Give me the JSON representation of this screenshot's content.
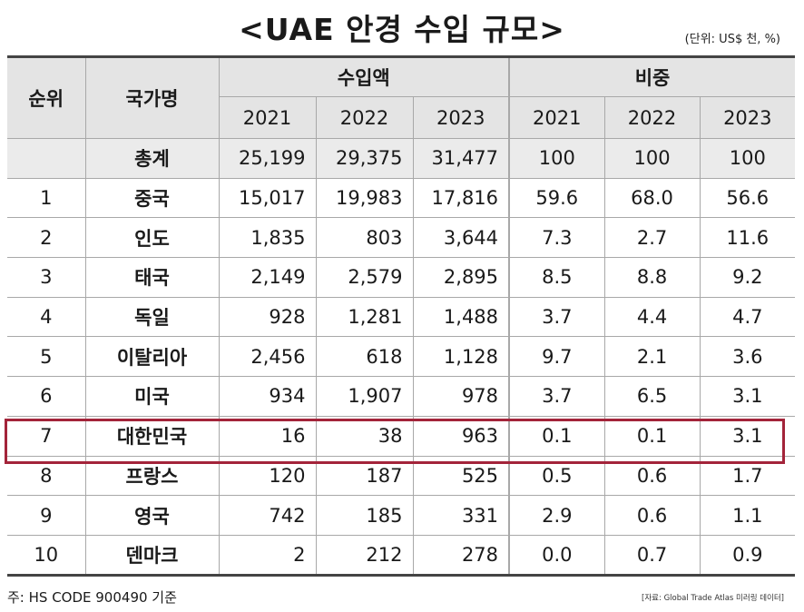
{
  "title": "<UAE 안경 수입 규모>",
  "unit": "(단위: US$ 천, %)",
  "headers": {
    "rank": "순위",
    "country": "국가명",
    "import_value": "수입액",
    "share": "비중",
    "years": [
      "2021",
      "2022",
      "2023"
    ]
  },
  "rows": [
    {
      "rank": "",
      "country": "총계",
      "import": [
        "25,199",
        "29,375",
        "31,477"
      ],
      "share": [
        "100",
        "100",
        "100"
      ]
    },
    {
      "rank": "1",
      "country": "중국",
      "import": [
        "15,017",
        "19,983",
        "17,816"
      ],
      "share": [
        "59.6",
        "68.0",
        "56.6"
      ]
    },
    {
      "rank": "2",
      "country": "인도",
      "import": [
        "1,835",
        "803",
        "3,644"
      ],
      "share": [
        "7.3",
        "2.7",
        "11.6"
      ]
    },
    {
      "rank": "3",
      "country": "태국",
      "import": [
        "2,149",
        "2,579",
        "2,895"
      ],
      "share": [
        "8.5",
        "8.8",
        "9.2"
      ]
    },
    {
      "rank": "4",
      "country": "독일",
      "import": [
        "928",
        "1,281",
        "1,488"
      ],
      "share": [
        "3.7",
        "4.4",
        "4.7"
      ]
    },
    {
      "rank": "5",
      "country": "이탈리아",
      "import": [
        "2,456",
        "618",
        "1,128"
      ],
      "share": [
        "9.7",
        "2.1",
        "3.6"
      ]
    },
    {
      "rank": "6",
      "country": "미국",
      "import": [
        "934",
        "1,907",
        "978"
      ],
      "share": [
        "3.7",
        "6.5",
        "3.1"
      ]
    },
    {
      "rank": "7",
      "country": "대한민국",
      "import": [
        "16",
        "38",
        "963"
      ],
      "share": [
        "0.1",
        "0.1",
        "3.1"
      ]
    },
    {
      "rank": "8",
      "country": "프랑스",
      "import": [
        "120",
        "187",
        "525"
      ],
      "share": [
        "0.5",
        "0.6",
        "1.7"
      ]
    },
    {
      "rank": "9",
      "country": "영국",
      "import": [
        "742",
        "185",
        "331"
      ],
      "share": [
        "2.9",
        "0.6",
        "1.1"
      ]
    },
    {
      "rank": "10",
      "country": "덴마크",
      "import": [
        "2",
        "212",
        "278"
      ],
      "share": [
        "0.0",
        "0.7",
        "0.9"
      ]
    }
  ],
  "highlight_color": "#a3243a",
  "note": "주: HS CODE 900490 기준",
  "source": "[자료: Global Trade Atlas 미러링 데이터]"
}
